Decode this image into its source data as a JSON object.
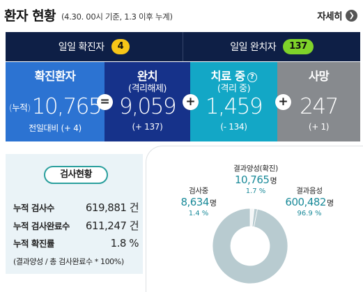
{
  "header": {
    "title": "환자 현황",
    "subtitle": "(4.30. 00시 기준, 1.3 이후 누계)",
    "detail_label": "자세히",
    "detail_icon": "chevron-right-icon"
  },
  "daily": {
    "confirmed_label": "일일 확진자",
    "confirmed_value": "4",
    "recovered_label": "일일 완치자",
    "recovered_value": "137"
  },
  "stats": {
    "confirmed": {
      "label": "확진환자",
      "prefix": "(누적)",
      "value": "10,765",
      "change": "전일대비 (+ 4)"
    },
    "recovered": {
      "label": "완치",
      "sub": "(격리해제)",
      "value": "9,059",
      "change": "(+ 137)"
    },
    "treatment": {
      "label": "치료 중",
      "sub": "(격리 중)",
      "value": "1,459",
      "change": "(- 134)"
    },
    "deceased": {
      "label": "사망",
      "value": "247",
      "change": "(+ 1)"
    },
    "operators": {
      "equals": "=",
      "plus1": "+",
      "plus2": "+"
    }
  },
  "test": {
    "title": "검사현황",
    "rows": [
      {
        "label": "누적 검사수",
        "value": "619,881 건"
      },
      {
        "label": "누적 검사완료수",
        "value": "611,247 건"
      },
      {
        "label": "누적 확진률",
        "value": "1.8 %"
      }
    ],
    "note": "(결과양성 / 총 검사완료수 * 100%)"
  },
  "donut": {
    "unit": "명",
    "positive": {
      "label": "결과양성(확진)",
      "value": "10,765",
      "pct": "1.7 %",
      "fraction": 0.017
    },
    "testing": {
      "label": "검사중",
      "value": "8,634",
      "pct": "1.4 %",
      "fraction": 0.014
    },
    "negative": {
      "label": "결과음성",
      "value": "600,482",
      "pct": "96.9 %",
      "fraction": 0.969
    }
  },
  "colors": {
    "daily_bg": "#0e1f46",
    "confirmed_bg": "#2c73d2",
    "recovered_bg": "#16328a",
    "treatment_bg": "#13a7c6",
    "deceased_bg": "#878a8e",
    "pill_yellow": "#f7c618",
    "pill_green": "#7fd32a",
    "donut_negative": "#b8cbd0",
    "donut_positive": "#f4f6f7",
    "donut_testing": "#b8cbd0"
  }
}
